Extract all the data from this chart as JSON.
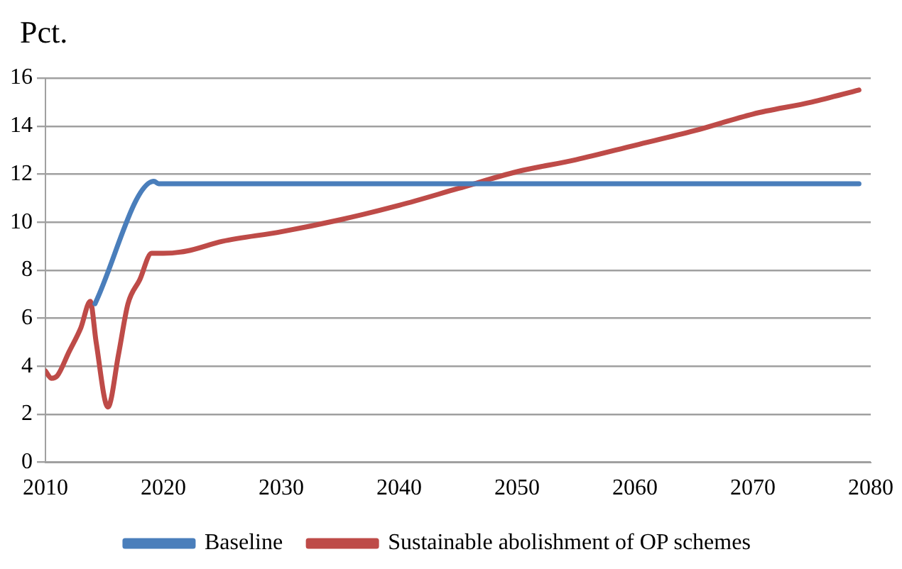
{
  "chart_data": {
    "type": "line",
    "ylabel": "Pct.",
    "xlim": [
      2010,
      2080
    ],
    "xticks": [
      2010,
      2020,
      2030,
      2040,
      2050,
      2060,
      2070,
      2080
    ],
    "ylim": [
      0,
      16
    ],
    "yticks": [
      0,
      2,
      4,
      6,
      8,
      10,
      12,
      14,
      16
    ],
    "grid": "y",
    "legend": "bottom",
    "marker": "none",
    "line_style": "solid",
    "series": [
      {
        "name": "Baseline",
        "color": "#4a7ebb",
        "x": [
          2014.2,
          2019.2,
          2019.6,
          2079
        ],
        "values": [
          6.6,
          11.7,
          11.6,
          11.6
        ]
      },
      {
        "name": "Sustainable abolishment of OP schemes",
        "color": "#be4b48",
        "x": [
          2010,
          2010.5,
          2011,
          2012,
          2013,
          2013.8,
          2014.3,
          2015.3,
          2016.2,
          2017,
          2018,
          2019,
          2020,
          2022,
          2025,
          2030,
          2035,
          2040,
          2045,
          2050,
          2055,
          2060,
          2065,
          2070,
          2075,
          2079
        ],
        "values": [
          3.8,
          3.5,
          3.6,
          4.6,
          5.6,
          6.7,
          5.0,
          2.3,
          4.5,
          6.6,
          7.6,
          8.7,
          8.7,
          8.8,
          9.2,
          9.6,
          10.1,
          10.7,
          11.4,
          12.1,
          12.6,
          13.2,
          13.8,
          14.5,
          15.0,
          15.5
        ]
      }
    ]
  }
}
